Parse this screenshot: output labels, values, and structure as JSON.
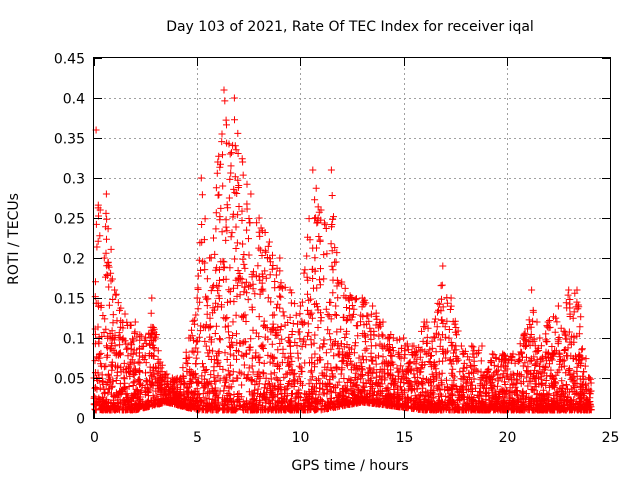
{
  "chart_data": {
    "type": "scatter",
    "title": "Day 103 of 2021, Rate Of TEC Index for receiver iqal",
    "xlabel": "GPS time / hours",
    "ylabel": "ROTI / TECUs",
    "xlim": [
      0,
      25
    ],
    "ylim": [
      0,
      0.45
    ],
    "xticks": [
      "0",
      "5",
      "10",
      "15",
      "20",
      "25"
    ],
    "xtick_values": [
      0,
      5,
      10,
      15,
      20,
      25
    ],
    "yticks": [
      "0",
      "0.05",
      "0.1",
      "0.15",
      "0.2",
      "0.25",
      "0.3",
      "0.35",
      "0.4",
      "0.45"
    ],
    "ytick_values": [
      0,
      0.05,
      0.1,
      0.15,
      0.2,
      0.25,
      0.3,
      0.35,
      0.4,
      0.45
    ],
    "grid": true,
    "legend": "none",
    "marker": "+",
    "series": [
      {
        "color": "#ff0000",
        "envelope": [
          [
            0.0,
            0.05
          ],
          [
            0.1,
            0.36
          ],
          [
            0.3,
            0.26
          ],
          [
            0.5,
            0.2
          ],
          [
            0.6,
            0.28
          ],
          [
            1.0,
            0.16
          ],
          [
            1.5,
            0.13
          ],
          [
            2.0,
            0.12
          ],
          [
            2.5,
            0.1
          ],
          [
            2.8,
            0.15
          ],
          [
            3.2,
            0.07
          ],
          [
            3.8,
            0.05
          ],
          [
            4.2,
            0.05
          ],
          [
            4.6,
            0.1
          ],
          [
            5.0,
            0.15
          ],
          [
            5.2,
            0.3
          ],
          [
            5.6,
            0.2
          ],
          [
            6.0,
            0.32
          ],
          [
            6.3,
            0.41
          ],
          [
            6.6,
            0.33
          ],
          [
            6.8,
            0.4
          ],
          [
            7.2,
            0.32
          ],
          [
            7.6,
            0.28
          ],
          [
            8.0,
            0.25
          ],
          [
            8.5,
            0.22
          ],
          [
            9.0,
            0.2
          ],
          [
            9.5,
            0.16
          ],
          [
            10.0,
            0.14
          ],
          [
            10.6,
            0.31
          ],
          [
            11.0,
            0.26
          ],
          [
            11.5,
            0.31
          ],
          [
            12.0,
            0.17
          ],
          [
            12.5,
            0.15
          ],
          [
            13.0,
            0.15
          ],
          [
            13.5,
            0.14
          ],
          [
            14.0,
            0.12
          ],
          [
            14.5,
            0.1
          ],
          [
            15.0,
            0.1
          ],
          [
            15.5,
            0.09
          ],
          [
            16.0,
            0.12
          ],
          [
            16.5,
            0.12
          ],
          [
            16.9,
            0.19
          ],
          [
            17.3,
            0.15
          ],
          [
            17.8,
            0.09
          ],
          [
            18.3,
            0.09
          ],
          [
            18.8,
            0.09
          ],
          [
            19.3,
            0.08
          ],
          [
            19.8,
            0.08
          ],
          [
            20.3,
            0.08
          ],
          [
            20.8,
            0.1
          ],
          [
            21.2,
            0.16
          ],
          [
            21.6,
            0.1
          ],
          [
            22.0,
            0.12
          ],
          [
            22.5,
            0.14
          ],
          [
            23.0,
            0.16
          ],
          [
            23.4,
            0.16
          ],
          [
            24.0,
            0.05
          ]
        ],
        "baseline": [
          [
            0.0,
            0.01
          ],
          [
            2.0,
            0.01
          ],
          [
            3.5,
            0.02
          ],
          [
            5.0,
            0.01
          ],
          [
            8.0,
            0.01
          ],
          [
            11.0,
            0.01
          ],
          [
            13.0,
            0.02
          ],
          [
            16.0,
            0.01
          ],
          [
            20.0,
            0.01
          ],
          [
            24.0,
            0.01
          ]
        ]
      }
    ]
  }
}
